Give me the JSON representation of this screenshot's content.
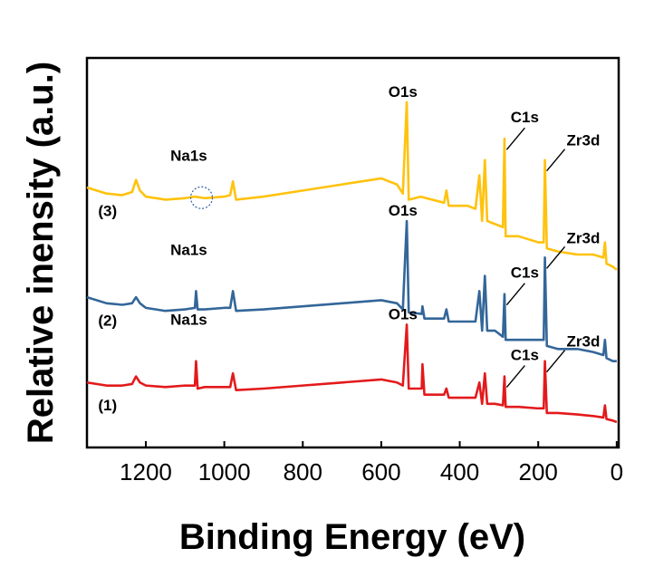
{
  "chart_data": {
    "type": "line",
    "xlabel": "Binding Energy (eV)",
    "ylabel": "Relative inensity (a.u.)",
    "xlim": [
      1350,
      -5
    ],
    "x_reversed": true,
    "xticks": [
      1200,
      1000,
      800,
      600,
      400,
      200,
      0
    ],
    "ytick_labels": false,
    "grid": false,
    "legend": "none",
    "series": [
      {
        "name": "(3)",
        "color": "#FFC20E",
        "baseline_at_0": 0.0,
        "points": [
          [
            1350,
            7.7
          ],
          [
            1300,
            7.5
          ],
          [
            1260,
            7.45
          ],
          [
            1235,
            7.55
          ],
          [
            1225,
            7.95
          ],
          [
            1215,
            7.6
          ],
          [
            1200,
            7.4
          ],
          [
            1150,
            7.3
          ],
          [
            1100,
            7.35
          ],
          [
            1075,
            7.4
          ],
          [
            1050,
            7.35
          ],
          [
            1000,
            7.4
          ],
          [
            985,
            7.45
          ],
          [
            978,
            7.9
          ],
          [
            970,
            7.3
          ],
          [
            900,
            7.4
          ],
          [
            800,
            7.6
          ],
          [
            700,
            7.8
          ],
          [
            600,
            8.0
          ],
          [
            560,
            7.8
          ],
          [
            545,
            7.5
          ],
          [
            535,
            10.5
          ],
          [
            530,
            7.3
          ],
          [
            500,
            7.4
          ],
          [
            440,
            7.2
          ],
          [
            434,
            7.6
          ],
          [
            428,
            7.1
          ],
          [
            380,
            7.1
          ],
          [
            360,
            7.0
          ],
          [
            350,
            8.1
          ],
          [
            343,
            6.6
          ],
          [
            336,
            8.6
          ],
          [
            330,
            6.6
          ],
          [
            310,
            6.5
          ],
          [
            290,
            6.4
          ],
          [
            286,
            9.3
          ],
          [
            283,
            6.1
          ],
          [
            250,
            6.1
          ],
          [
            200,
            5.9
          ],
          [
            186,
            5.9
          ],
          [
            183,
            8.6
          ],
          [
            178,
            5.7
          ],
          [
            150,
            5.6
          ],
          [
            100,
            5.5
          ],
          [
            60,
            5.5
          ],
          [
            34,
            5.4
          ],
          [
            30,
            5.9
          ],
          [
            26,
            5.2
          ],
          [
            10,
            5.1
          ],
          [
            0,
            5.0
          ]
        ]
      },
      {
        "name": "(2)",
        "color": "#336699",
        "baseline_at_0": 0.0,
        "points": [
          [
            1350,
            4.1
          ],
          [
            1300,
            3.9
          ],
          [
            1260,
            3.85
          ],
          [
            1235,
            3.9
          ],
          [
            1225,
            4.1
          ],
          [
            1215,
            3.9
          ],
          [
            1200,
            3.75
          ],
          [
            1150,
            3.65
          ],
          [
            1100,
            3.7
          ],
          [
            1075,
            3.75
          ],
          [
            1072,
            4.3
          ],
          [
            1068,
            3.7
          ],
          [
            1050,
            3.7
          ],
          [
            1000,
            3.75
          ],
          [
            985,
            3.75
          ],
          [
            978,
            4.3
          ],
          [
            970,
            3.65
          ],
          [
            900,
            3.7
          ],
          [
            800,
            3.8
          ],
          [
            700,
            3.9
          ],
          [
            600,
            4.0
          ],
          [
            560,
            3.9
          ],
          [
            545,
            3.7
          ],
          [
            535,
            6.6
          ],
          [
            530,
            3.6
          ],
          [
            497,
            3.55
          ],
          [
            495,
            3.8
          ],
          [
            490,
            3.4
          ],
          [
            440,
            3.4
          ],
          [
            434,
            3.7
          ],
          [
            428,
            3.3
          ],
          [
            380,
            3.3
          ],
          [
            360,
            3.3
          ],
          [
            350,
            4.3
          ],
          [
            343,
            3.0
          ],
          [
            336,
            4.8
          ],
          [
            330,
            3.0
          ],
          [
            310,
            3.0
          ],
          [
            290,
            2.8
          ],
          [
            286,
            4.2
          ],
          [
            283,
            2.7
          ],
          [
            250,
            2.7
          ],
          [
            200,
            2.7
          ],
          [
            186,
            2.7
          ],
          [
            183,
            5.4
          ],
          [
            178,
            2.5
          ],
          [
            150,
            2.4
          ],
          [
            100,
            2.4
          ],
          [
            60,
            2.3
          ],
          [
            34,
            2.2
          ],
          [
            30,
            2.7
          ],
          [
            26,
            2.1
          ],
          [
            10,
            2.0
          ],
          [
            0,
            2.0
          ]
        ]
      },
      {
        "name": "(1)",
        "color": "#E31A1C",
        "baseline_at_0": 0.0,
        "points": [
          [
            1350,
            1.3
          ],
          [
            1300,
            1.2
          ],
          [
            1260,
            1.2
          ],
          [
            1235,
            1.25
          ],
          [
            1225,
            1.5
          ],
          [
            1215,
            1.3
          ],
          [
            1200,
            1.2
          ],
          [
            1150,
            1.15
          ],
          [
            1100,
            1.2
          ],
          [
            1075,
            1.2
          ],
          [
            1072,
            2.0
          ],
          [
            1068,
            1.1
          ],
          [
            1050,
            1.15
          ],
          [
            1000,
            1.15
          ],
          [
            985,
            1.15
          ],
          [
            978,
            1.6
          ],
          [
            970,
            1.05
          ],
          [
            900,
            1.1
          ],
          [
            800,
            1.2
          ],
          [
            700,
            1.3
          ],
          [
            600,
            1.4
          ],
          [
            560,
            1.3
          ],
          [
            545,
            1.2
          ],
          [
            535,
            3.2
          ],
          [
            530,
            1.1
          ],
          [
            500,
            1.1
          ],
          [
            497,
            1.1
          ],
          [
            495,
            1.9
          ],
          [
            490,
            0.9
          ],
          [
            440,
            0.9
          ],
          [
            434,
            1.1
          ],
          [
            428,
            0.8
          ],
          [
            380,
            0.8
          ],
          [
            360,
            0.8
          ],
          [
            350,
            1.3
          ],
          [
            343,
            0.6
          ],
          [
            336,
            1.6
          ],
          [
            330,
            0.6
          ],
          [
            310,
            0.6
          ],
          [
            290,
            0.55
          ],
          [
            286,
            1.5
          ],
          [
            283,
            0.5
          ],
          [
            250,
            0.5
          ],
          [
            200,
            0.45
          ],
          [
            186,
            0.45
          ],
          [
            183,
            2.0
          ],
          [
            178,
            0.3
          ],
          [
            150,
            0.3
          ],
          [
            100,
            0.25
          ],
          [
            60,
            0.2
          ],
          [
            34,
            0.15
          ],
          [
            30,
            0.55
          ],
          [
            26,
            0.1
          ],
          [
            10,
            0.05
          ],
          [
            0,
            0.0
          ]
        ]
      }
    ],
    "annotations": [
      {
        "text": "(3)",
        "series": "(3)",
        "kind": "curve-label"
      },
      {
        "text": "(2)",
        "series": "(2)",
        "kind": "curve-label"
      },
      {
        "text": "(1)",
        "series": "(1)",
        "kind": "curve-label"
      },
      {
        "text": "Na1s",
        "series": "(3)",
        "x": 1072,
        "kind": "peak-label",
        "circle": true
      },
      {
        "text": "O1s",
        "series": "(3)",
        "x": 531,
        "kind": "peak-label"
      },
      {
        "text": "C1s",
        "series": "(3)",
        "x": 285,
        "kind": "peak-label",
        "leader": true
      },
      {
        "text": "Zr3d",
        "series": "(3)",
        "x": 183,
        "kind": "peak-label",
        "leader": true
      },
      {
        "text": "Na1s",
        "series": "(2)",
        "x": 1072,
        "kind": "peak-label"
      },
      {
        "text": "O1s",
        "series": "(2)",
        "x": 531,
        "kind": "peak-label"
      },
      {
        "text": "C1s",
        "series": "(2)",
        "x": 285,
        "kind": "peak-label",
        "leader": true
      },
      {
        "text": "Zr3d",
        "series": "(2)",
        "x": 183,
        "kind": "peak-label",
        "leader": true
      },
      {
        "text": "Na1s",
        "series": "(1)",
        "x": 1072,
        "kind": "peak-label"
      },
      {
        "text": "O1s",
        "series": "(1)",
        "x": 531,
        "kind": "peak-label"
      },
      {
        "text": "C1s",
        "series": "(1)",
        "x": 285,
        "kind": "peak-label",
        "leader": true
      },
      {
        "text": "Zr3d",
        "series": "(1)",
        "x": 183,
        "kind": "peak-label",
        "leader": true
      }
    ]
  }
}
